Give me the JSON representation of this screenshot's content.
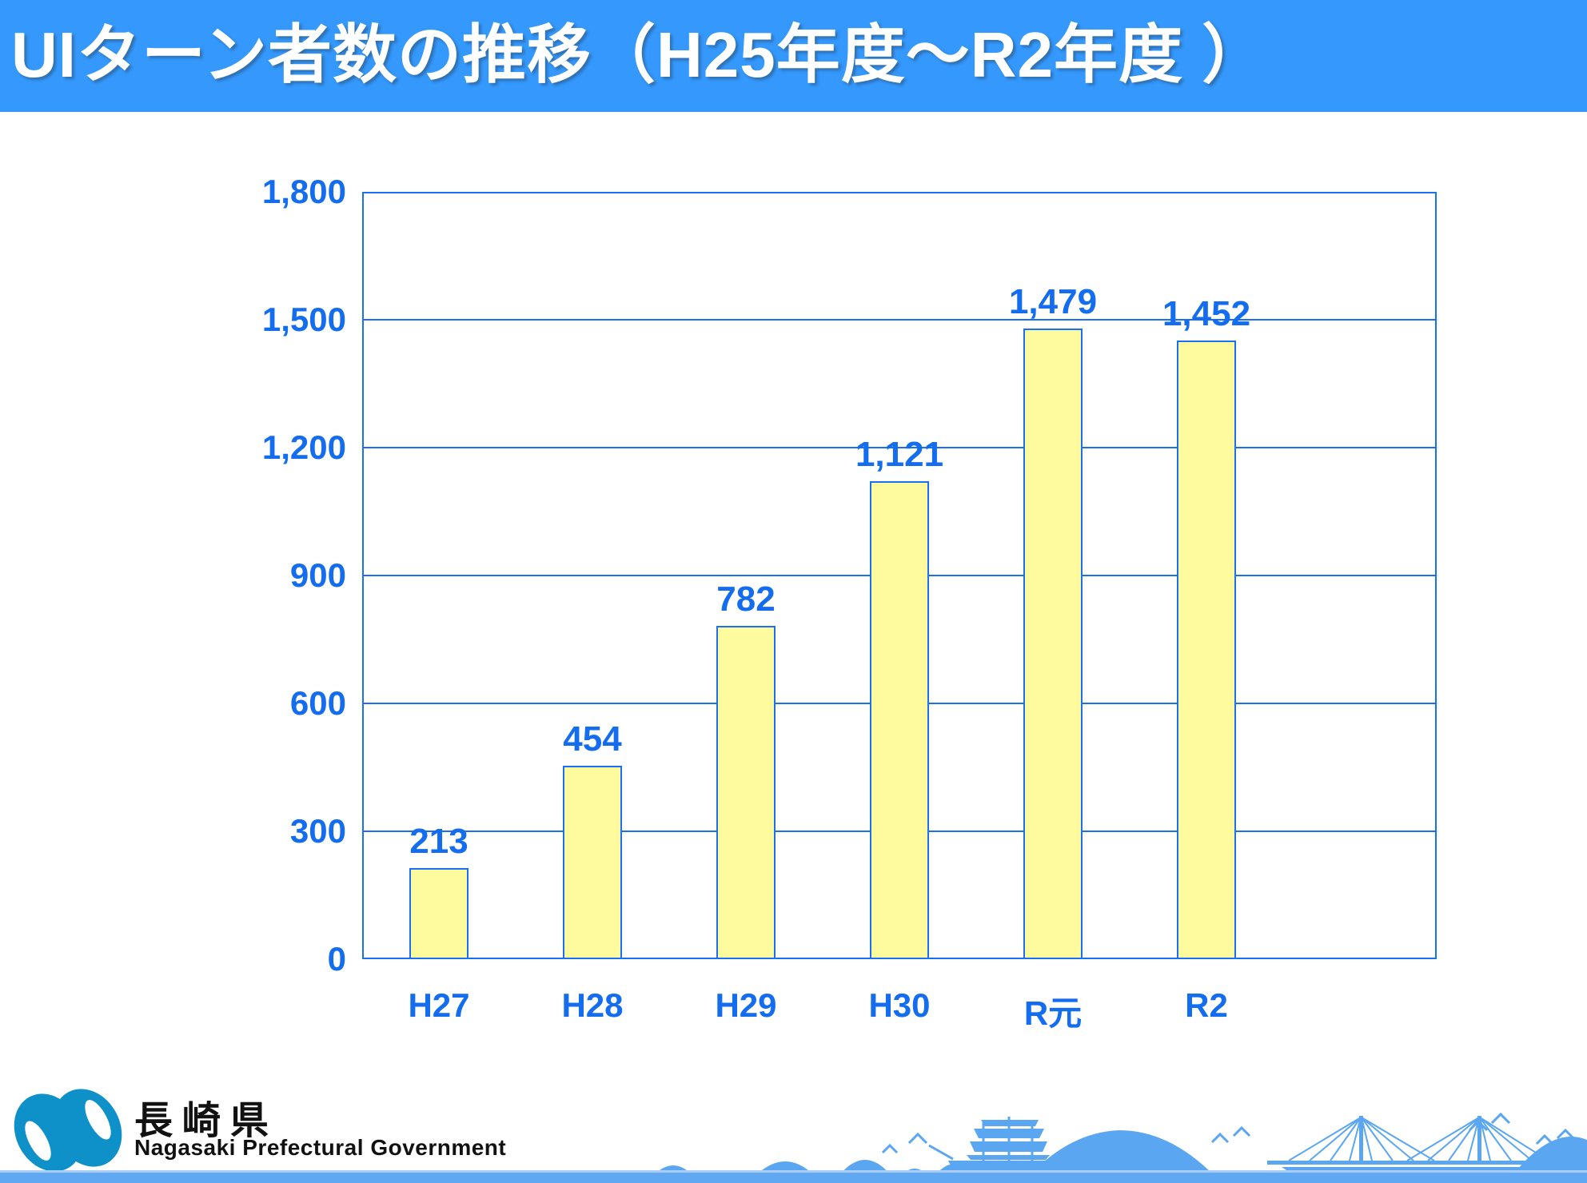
{
  "header": {
    "title": "UIターン者数の推移（H25年度～R2年度 ）"
  },
  "chart_data": {
    "type": "bar",
    "title": "UIターン者数の推移（H25年度～R2年度 ）",
    "categories": [
      "H27",
      "H28",
      "H29",
      "H30",
      "R元",
      "R2"
    ],
    "values": [
      213,
      454,
      782,
      1121,
      1479,
      1452
    ],
    "value_labels": [
      "213",
      "454",
      "782",
      "1,121",
      "1,479",
      "1,452"
    ],
    "xlabel": "",
    "ylabel": "",
    "ylim": [
      0,
      1800
    ],
    "ytick_interval": 300,
    "ytick_labels": [
      "0",
      "300",
      "600",
      "900",
      "1,200",
      "1,500",
      "1,800"
    ],
    "grid": true,
    "legend": "none",
    "category_slots": 7,
    "xlabel_offsets": [
      0,
      0,
      0,
      0,
      10,
      0
    ]
  },
  "footer": {
    "logo_text_ja": "長崎県",
    "logo_text_en": "Nagasaki Prefectural Government"
  },
  "icons": {
    "logo": "nagasaki-swirl-logo-icon",
    "decoration": "coastline-ship-bridge-illustration"
  },
  "colors": {
    "header_bg": "#3498FD",
    "title_text": "#FFFFFF",
    "chart_line": "#1A6FF2",
    "label_blue": "#146DEE",
    "bar_fill": "#FEFB9E",
    "bar_border": "#1A6FF2",
    "logo_cyan": "#0E90C8",
    "decoration_blue": "#5BA6F1",
    "strip_blue": "#60A8F1",
    "strip_light": "#AACDF8",
    "text_black": "#111111"
  }
}
